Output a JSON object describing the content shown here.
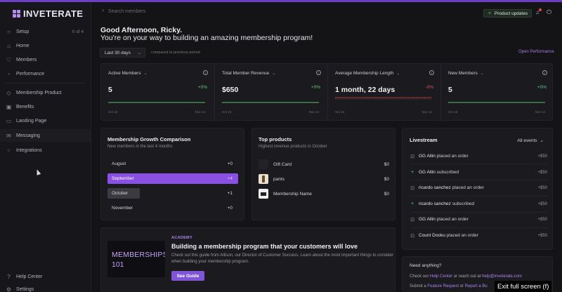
{
  "app": {
    "name": "INVETERATE"
  },
  "sidebar": {
    "setup": {
      "label": "Setup",
      "count": "0 of 4"
    },
    "items": [
      {
        "label": "Home",
        "icon": "home-icon"
      },
      {
        "label": "Members",
        "icon": "heart-icon"
      },
      {
        "label": "Performance",
        "icon": "chart-icon"
      },
      {
        "label": "Membership Product",
        "icon": "tag-icon"
      },
      {
        "label": "Benefits",
        "icon": "gift-icon"
      },
      {
        "label": "Landing Page",
        "icon": "page-icon"
      },
      {
        "label": "Messaging",
        "icon": "mail-icon"
      },
      {
        "label": "Integrations",
        "icon": "grid-icon"
      }
    ],
    "footer": [
      {
        "label": "Help Center",
        "icon": "help-icon"
      },
      {
        "label": "Settings",
        "icon": "gear-icon"
      }
    ]
  },
  "topbar": {
    "search_placeholder": "Search members",
    "product_updates": "Product updates"
  },
  "greeting": {
    "line1": "Good Afternoon, Ricky.",
    "line2": "You're on your way to building an amazing membership program!"
  },
  "filters": {
    "period": "Last 30 days",
    "compared": "compared to previous period",
    "open_performance": "Open Performance"
  },
  "stats": [
    {
      "label": "Active Members",
      "value": "5",
      "change": "+0%",
      "positive": true,
      "x_start": "Oct 16",
      "x_end": "Nov 14"
    },
    {
      "label": "Total Member Revenue",
      "value": "$650",
      "change": "+0%",
      "positive": true,
      "x_start": "Oct 16",
      "x_end": "Nov 14"
    },
    {
      "label": "Average Membership Length",
      "value": "1 month, 22 days",
      "change": "-0%",
      "positive": false,
      "x_start": "Oct 16",
      "x_end": "Nov 14"
    },
    {
      "label": "New Members",
      "value": "5",
      "change": "+0%",
      "positive": true,
      "x_start": "Oct 16",
      "x_end": "Nov 14"
    }
  ],
  "growth": {
    "title": "Membership Growth Comparison",
    "subtitle": "New members in the last 4 months",
    "rows": [
      {
        "month": "August",
        "value": "+0"
      },
      {
        "month": "September",
        "value": "+4"
      },
      {
        "month": "October",
        "value": "+1"
      },
      {
        "month": "November",
        "value": "+0"
      }
    ]
  },
  "products": {
    "title": "Top products",
    "subtitle": "Highest revenue products in October",
    "rows": [
      {
        "name": "Gift Card",
        "value": "$0"
      },
      {
        "name": "pants",
        "value": "$0"
      },
      {
        "name": "Membership Name",
        "value": "$0"
      }
    ]
  },
  "livestream": {
    "title": "Livestream",
    "filter": "All events",
    "rows": [
      {
        "name": "GG Allin",
        "action": "placed an order",
        "value": "+$50",
        "icon": "bag-icon"
      },
      {
        "name": "GG Allin",
        "action": "subscribed",
        "value": "+$50",
        "icon": "plus-icon"
      },
      {
        "name": "ricardo sanchez",
        "action": "placed an order",
        "value": "+$50",
        "icon": "bag-icon"
      },
      {
        "name": "ricardo sanchez",
        "action": "subscribed",
        "value": "+$50",
        "icon": "plus-icon"
      },
      {
        "name": "GG Allin",
        "action": "placed an order",
        "value": "+$50",
        "icon": "bag-icon"
      },
      {
        "name": "Count Dooku",
        "action": "placed an order",
        "value": "+$50",
        "icon": "bag-icon"
      }
    ]
  },
  "need": {
    "title": "Need anything?",
    "line1_pre": "Check our",
    "line1_link": "Help Center",
    "line1_mid": "or reach out at",
    "line1_email": "help@inveterate.com",
    "line2_pre": "Submit a",
    "line2_link1": "Feature Request",
    "line2_mid": "or",
    "line2_link2": "Report a Bu"
  },
  "academy": {
    "image_line1": "MEMBERSHIPS",
    "image_line2": "101",
    "tag": "ACADEMY",
    "title": "Building a membership program that your customers will love",
    "description": "Check out this guide from Allison, our Director of Customer Success. Learn about the most important things to consider when building your membership program.",
    "button": "See Guide"
  },
  "overlay": {
    "exit_fullscreen": "Exit full screen (f)"
  },
  "colors": {
    "accent": "#7f55d6",
    "positive": "#5fd07a",
    "negative": "#e0524f"
  }
}
